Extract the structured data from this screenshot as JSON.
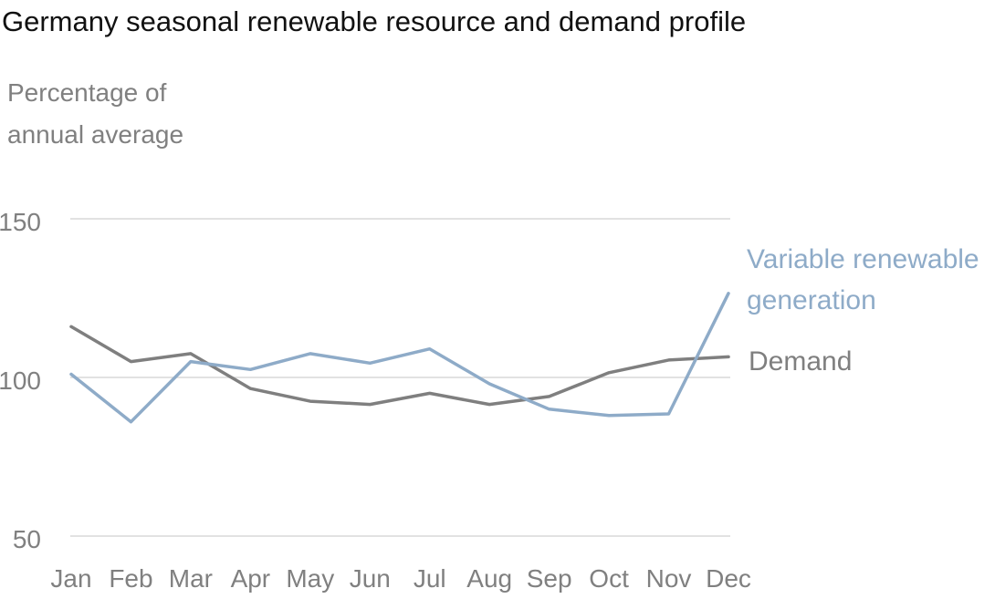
{
  "chart_data": {
    "type": "line",
    "title": "Germany seasonal renewable resource and demand profile",
    "ylabel_lines": [
      "Percentage of",
      "annual average"
    ],
    "xlabel": "",
    "categories": [
      "Jan",
      "Feb",
      "Mar",
      "Apr",
      "May",
      "Jun",
      "Jul",
      "Aug",
      "Sep",
      "Oct",
      "Nov",
      "Dec"
    ],
    "yticks": [
      50,
      100,
      150
    ],
    "ylim": [
      50,
      150
    ],
    "grid": true,
    "legend": "direct labels at right end of lines",
    "series": [
      {
        "name": "Demand",
        "label_lines": [
          "Demand"
        ],
        "color": "#7f7f7f",
        "values": [
          116,
          105,
          107.5,
          96.5,
          92.5,
          91.5,
          95,
          91.5,
          94,
          101.5,
          105.5,
          106.5
        ]
      },
      {
        "name": "Variable renewable generation",
        "label_lines": [
          "Variable renewable",
          "generation"
        ],
        "color": "#8eabc8",
        "values": [
          101,
          86,
          105,
          102.5,
          107.5,
          104.5,
          109,
          98,
          90,
          88,
          88.5,
          126.5
        ]
      }
    ]
  }
}
